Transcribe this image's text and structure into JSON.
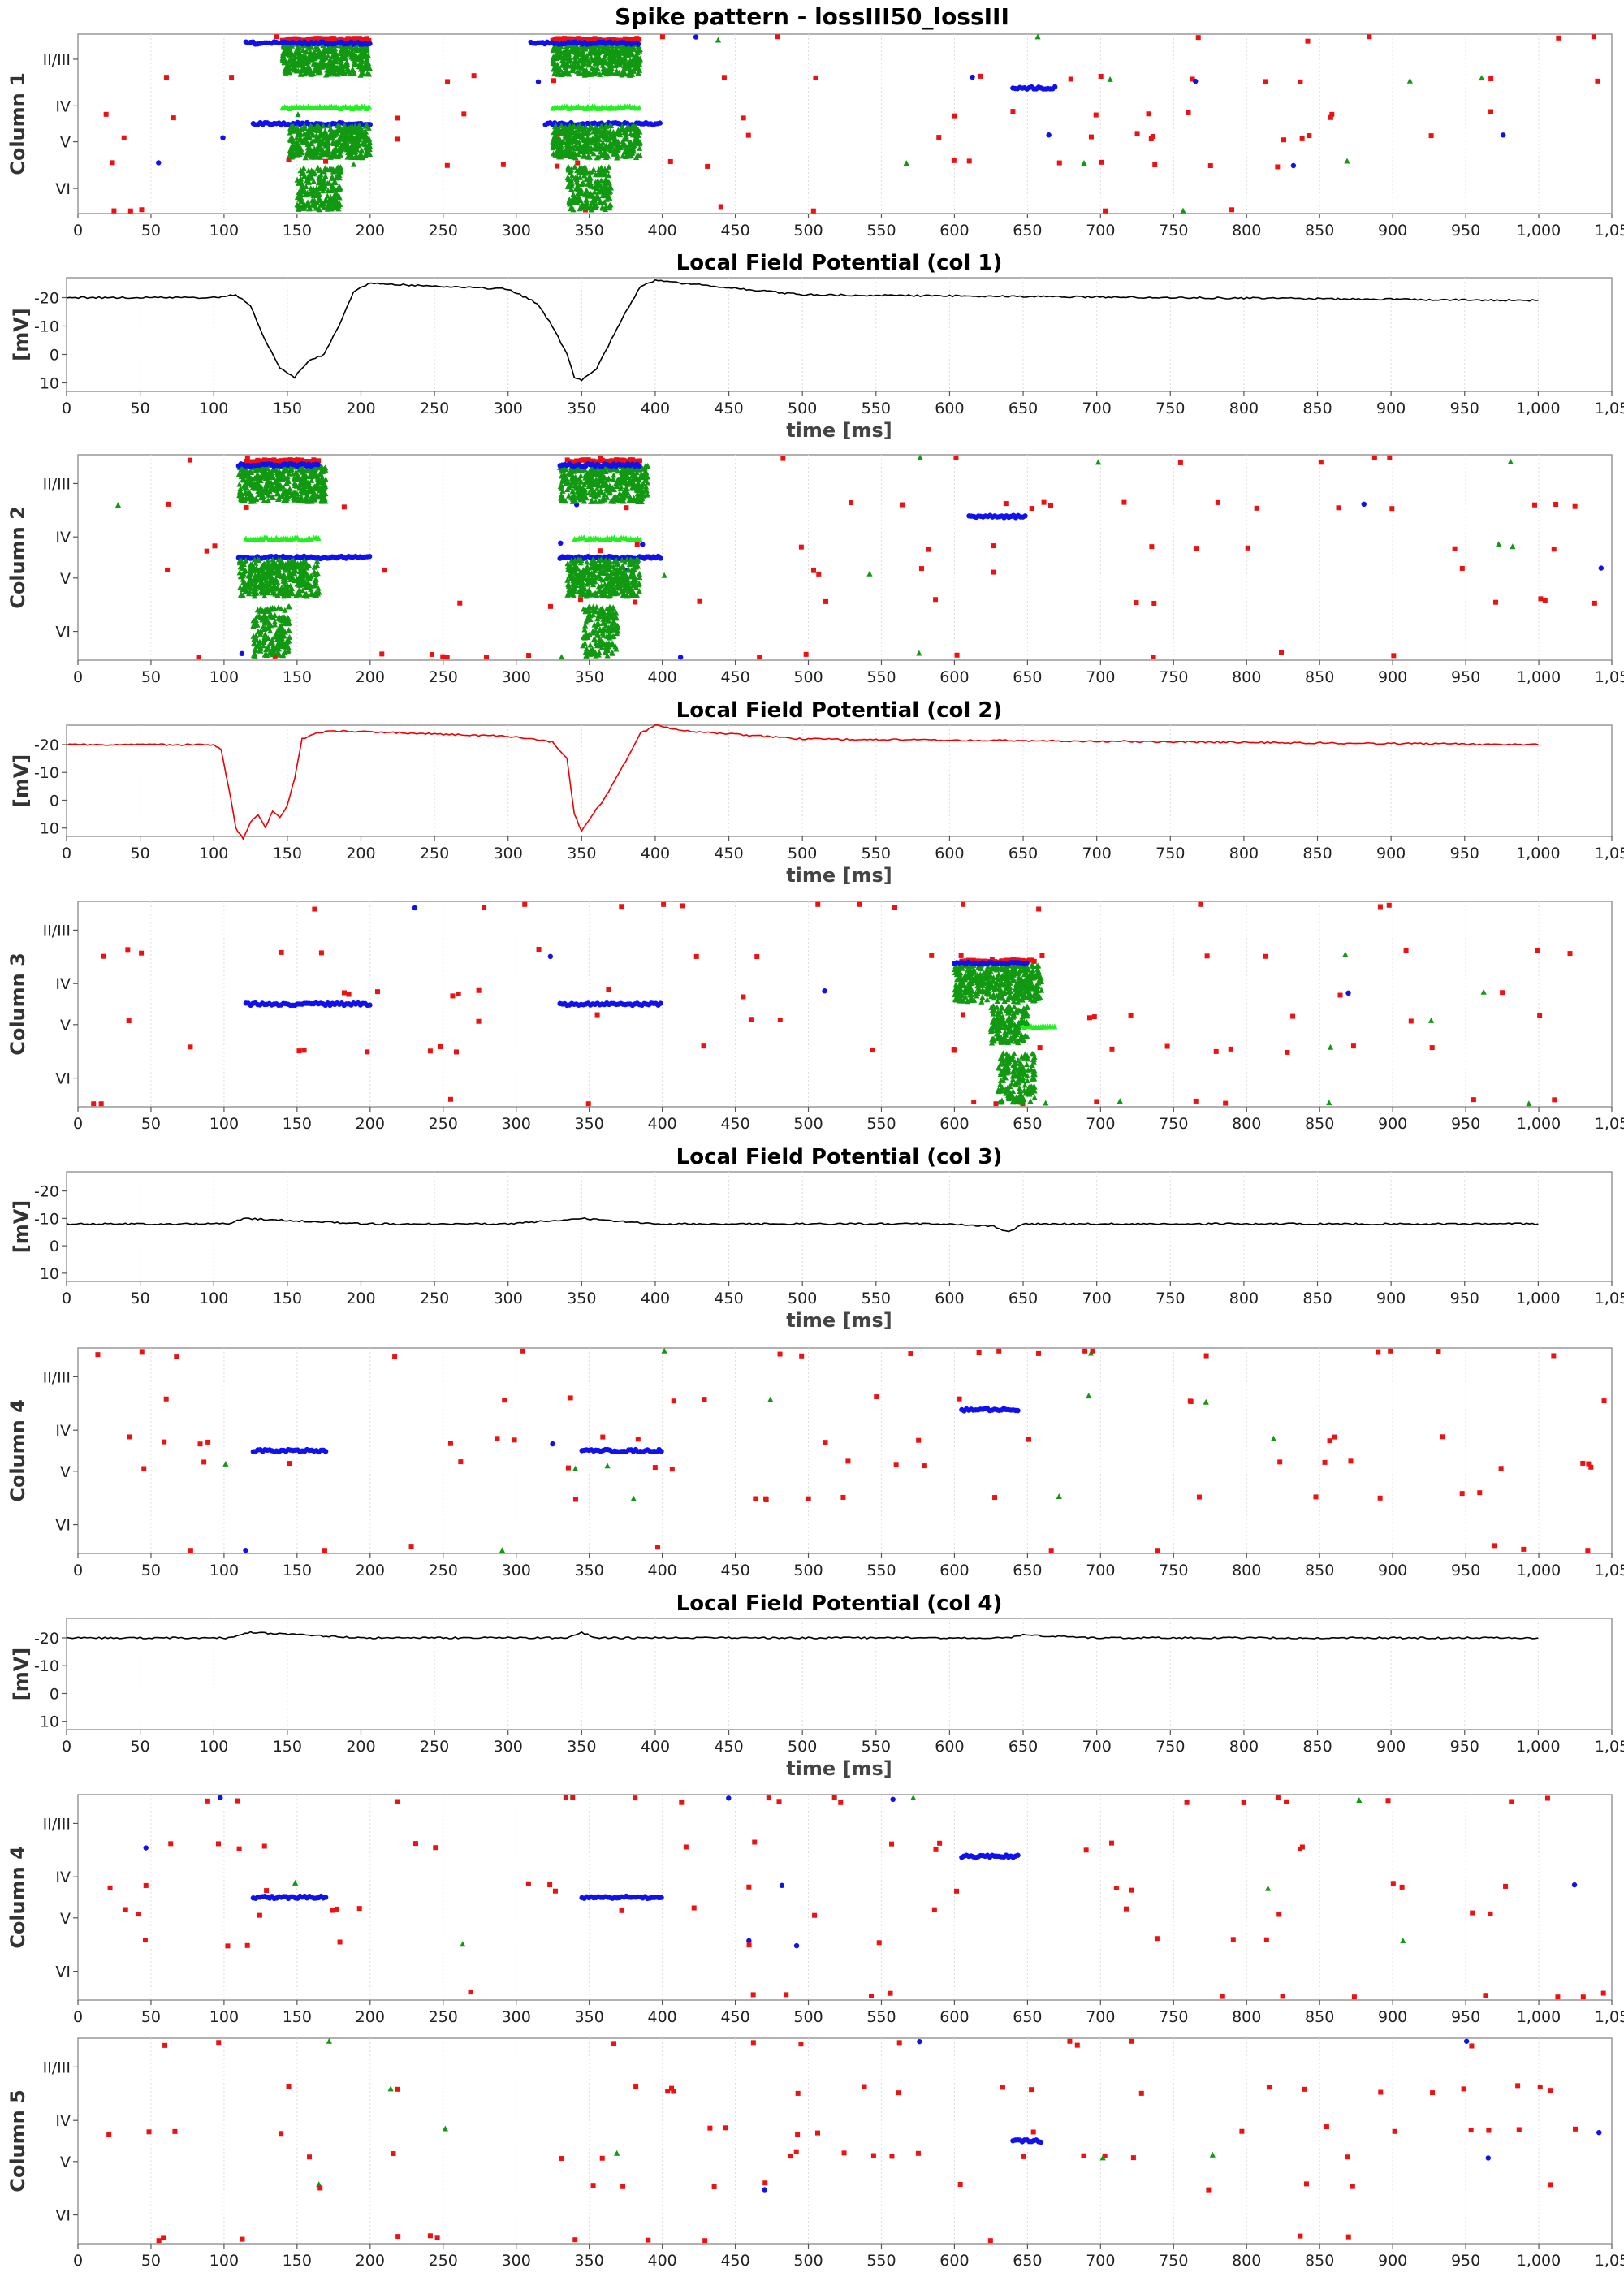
{
  "title": "Spike pattern - lossIII50_lossIII",
  "colors": {
    "red": "#ee1111",
    "blue": "#1111ee",
    "green": "#119911",
    "lime": "#22ee22",
    "lfp_black": "#000000",
    "lfp_red": "#ee0000",
    "frame": "#999999",
    "grid": "#dddddd"
  },
  "chart_data": [
    {
      "type": "scatter",
      "ylabel": "Column 1",
      "x_ticks": [
        0,
        50,
        100,
        150,
        200,
        250,
        300,
        350,
        400,
        450,
        500,
        550,
        600,
        650,
        700,
        750,
        800,
        850,
        900,
        950,
        "1,000",
        "1,05"
      ],
      "layer_labels": [
        "II/III",
        "IV",
        "V",
        "VI"
      ],
      "xlim": [
        0,
        1050
      ],
      "grid": true,
      "bursts": [
        {
          "layer": "II/III",
          "kind": "dense",
          "x": [
            140,
            200
          ],
          "color": "green"
        },
        {
          "layer": "II/III",
          "kind": "band",
          "x": [
            140,
            200
          ],
          "color": "red"
        },
        {
          "layer": "II/III",
          "kind": "band",
          "x": [
            115,
            200
          ],
          "color": "blue"
        },
        {
          "layer": "IV",
          "kind": "band",
          "x": [
            140,
            200
          ],
          "color": "lime"
        },
        {
          "layer": "V",
          "kind": "band",
          "x": [
            120,
            200
          ],
          "color": "blue"
        },
        {
          "layer": "V",
          "kind": "dense",
          "x": [
            145,
            200
          ],
          "color": "green"
        },
        {
          "layer": "VI",
          "kind": "dense",
          "x": [
            150,
            180
          ],
          "color": "green"
        },
        {
          "layer": "II/III",
          "kind": "dense",
          "x": [
            325,
            385
          ],
          "color": "green"
        },
        {
          "layer": "II/III",
          "kind": "band",
          "x": [
            325,
            385
          ],
          "color": "red"
        },
        {
          "layer": "II/III",
          "kind": "band",
          "x": [
            310,
            385
          ],
          "color": "blue"
        },
        {
          "layer": "IV",
          "kind": "band",
          "x": [
            325,
            385
          ],
          "color": "lime"
        },
        {
          "layer": "V",
          "kind": "band",
          "x": [
            320,
            400
          ],
          "color": "blue"
        },
        {
          "layer": "V",
          "kind": "dense",
          "x": [
            325,
            385
          ],
          "color": "green"
        },
        {
          "layer": "VI",
          "kind": "dense",
          "x": [
            335,
            365
          ],
          "color": "green"
        },
        {
          "layer": "IV",
          "kind": "band",
          "x": [
            640,
            670
          ],
          "color": "blue"
        }
      ]
    },
    {
      "type": "line",
      "title": "Local Field Potential (col 1)",
      "xlabel": "time [ms]",
      "ylabel": "[mV]",
      "y_ticks": [
        -20,
        -10,
        0,
        10
      ],
      "ylim": [
        -27,
        13
      ],
      "x_ticks": [
        0,
        50,
        100,
        150,
        200,
        250,
        300,
        350,
        400,
        450,
        500,
        550,
        600,
        650,
        700,
        750,
        800,
        850,
        900,
        950,
        "1,000",
        "1,05"
      ],
      "xlim": [
        0,
        1050
      ],
      "color": "lfp_black",
      "grid": true,
      "x": [
        0,
        100,
        115,
        125,
        135,
        145,
        155,
        165,
        175,
        185,
        195,
        205,
        300,
        320,
        330,
        340,
        345,
        350,
        360,
        370,
        380,
        390,
        400,
        500,
        1000
      ],
      "y": [
        -20,
        -20,
        -21,
        -17,
        -5,
        5,
        8,
        2,
        0,
        -10,
        -22,
        -25,
        -23,
        -18,
        -10,
        0,
        8,
        9,
        5,
        -5,
        -15,
        -24,
        -26,
        -21,
        -19
      ]
    },
    {
      "type": "scatter",
      "ylabel": "Column 2",
      "x_ticks": [
        0,
        50,
        100,
        150,
        200,
        250,
        300,
        350,
        400,
        450,
        500,
        550,
        600,
        650,
        700,
        750,
        800,
        850,
        900,
        950,
        "1,000",
        "1,05"
      ],
      "layer_labels": [
        "II/III",
        "IV",
        "V",
        "VI"
      ],
      "xlim": [
        0,
        1050
      ],
      "grid": true,
      "bursts": [
        {
          "layer": "II/III",
          "kind": "dense",
          "x": [
            110,
            170
          ],
          "color": "green"
        },
        {
          "layer": "II/III",
          "kind": "band",
          "x": [
            115,
            165
          ],
          "color": "red"
        },
        {
          "layer": "II/III",
          "kind": "band",
          "x": [
            110,
            165
          ],
          "color": "blue"
        },
        {
          "layer": "IV",
          "kind": "band",
          "x": [
            115,
            165
          ],
          "color": "lime"
        },
        {
          "layer": "V",
          "kind": "band",
          "x": [
            110,
            200
          ],
          "color": "blue"
        },
        {
          "layer": "V",
          "kind": "dense",
          "x": [
            110,
            165
          ],
          "color": "green"
        },
        {
          "layer": "VI",
          "kind": "dense",
          "x": [
            120,
            145
          ],
          "color": "green"
        },
        {
          "layer": "II/III",
          "kind": "dense",
          "x": [
            330,
            390
          ],
          "color": "green"
        },
        {
          "layer": "II/III",
          "kind": "band",
          "x": [
            335,
            385
          ],
          "color": "red"
        },
        {
          "layer": "II/III",
          "kind": "band",
          "x": [
            330,
            385
          ],
          "color": "blue"
        },
        {
          "layer": "IV",
          "kind": "band",
          "x": [
            340,
            385
          ],
          "color": "lime"
        },
        {
          "layer": "V",
          "kind": "band",
          "x": [
            330,
            400
          ],
          "color": "blue"
        },
        {
          "layer": "V",
          "kind": "dense",
          "x": [
            335,
            385
          ],
          "color": "green"
        },
        {
          "layer": "VI",
          "kind": "dense",
          "x": [
            345,
            370
          ],
          "color": "green"
        },
        {
          "layer": "IV",
          "kind": "band",
          "x": [
            610,
            650
          ],
          "color": "blue"
        }
      ]
    },
    {
      "type": "line",
      "title": "Local Field Potential (col 2)",
      "xlabel": "time [ms]",
      "ylabel": "[mV]",
      "y_ticks": [
        -20,
        -10,
        0,
        10
      ],
      "ylim": [
        -27,
        13
      ],
      "x_ticks": [
        0,
        50,
        100,
        150,
        200,
        250,
        300,
        350,
        400,
        450,
        500,
        550,
        600,
        650,
        700,
        750,
        800,
        850,
        900,
        950,
        "1,000",
        "1,05"
      ],
      "xlim": [
        0,
        1050
      ],
      "color": "lfp_red",
      "grid": true,
      "x": [
        0,
        100,
        105,
        110,
        115,
        120,
        125,
        130,
        135,
        140,
        145,
        150,
        155,
        160,
        170,
        180,
        300,
        330,
        340,
        345,
        350,
        355,
        360,
        365,
        370,
        380,
        390,
        400,
        420,
        500,
        1000
      ],
      "y": [
        -20,
        -20,
        -18,
        -5,
        10,
        14,
        8,
        5,
        10,
        4,
        6,
        2,
        -8,
        -22,
        -24,
        -25,
        -23,
        -21,
        -15,
        5,
        11,
        7,
        3,
        0,
        -5,
        -14,
        -24,
        -27,
        -25,
        -22,
        -20
      ]
    },
    {
      "type": "scatter",
      "ylabel": "Column 3",
      "x_ticks": [
        0,
        50,
        100,
        150,
        200,
        250,
        300,
        350,
        400,
        450,
        500,
        550,
        600,
        650,
        700,
        750,
        800,
        850,
        900,
        950,
        "1,000",
        "1,05"
      ],
      "layer_labels": [
        "II/III",
        "IV",
        "V",
        "VI"
      ],
      "xlim": [
        0,
        1050
      ],
      "grid": true,
      "bursts": [
        {
          "layer": "V",
          "kind": "band",
          "x": [
            115,
            200
          ],
          "color": "blue"
        },
        {
          "layer": "V",
          "kind": "band",
          "x": [
            330,
            400
          ],
          "color": "blue"
        },
        {
          "layer": "IV",
          "kind": "dense",
          "x": [
            600,
            660
          ],
          "color": "green"
        },
        {
          "layer": "IV",
          "kind": "band",
          "x": [
            605,
            655
          ],
          "color": "red"
        },
        {
          "layer": "IV",
          "kind": "band",
          "x": [
            600,
            650
          ],
          "color": "blue"
        },
        {
          "layer": "V",
          "kind": "band",
          "x": [
            635,
            670
          ],
          "color": "lime"
        },
        {
          "layer": "V",
          "kind": "dense",
          "x": [
            625,
            650
          ],
          "color": "green"
        },
        {
          "layer": "VI",
          "kind": "dense",
          "x": [
            630,
            655
          ],
          "color": "green"
        }
      ]
    },
    {
      "type": "line",
      "title": "Local Field Potential (col 3)",
      "xlabel": "time [ms]",
      "ylabel": "[mV]",
      "y_ticks": [
        -20,
        -10,
        0,
        10
      ],
      "ylim": [
        -27,
        13
      ],
      "x_ticks": [
        0,
        50,
        100,
        150,
        200,
        250,
        300,
        350,
        400,
        450,
        500,
        550,
        600,
        650,
        700,
        750,
        800,
        850,
        900,
        950,
        "1,000",
        "1,05"
      ],
      "xlim": [
        0,
        1050
      ],
      "color": "lfp_black",
      "grid": true,
      "x": [
        0,
        110,
        120,
        200,
        300,
        350,
        400,
        500,
        600,
        630,
        640,
        650,
        700,
        1000
      ],
      "y": [
        -8,
        -8,
        -10,
        -8,
        -8,
        -10,
        -8,
        -8,
        -8,
        -7,
        -5,
        -8,
        -8,
        -8
      ]
    },
    {
      "type": "scatter",
      "ylabel": "Column 4",
      "x_ticks": [
        0,
        50,
        100,
        150,
        200,
        250,
        300,
        350,
        400,
        450,
        500,
        550,
        600,
        650,
        700,
        750,
        800,
        850,
        900,
        950,
        "1,000",
        "1,05"
      ],
      "layer_labels": [
        "II/III",
        "IV",
        "V",
        "VI"
      ],
      "xlim": [
        0,
        1050
      ],
      "grid": true,
      "bursts": [
        {
          "layer": "V",
          "kind": "band",
          "x": [
            120,
            170
          ],
          "color": "blue"
        },
        {
          "layer": "V",
          "kind": "band",
          "x": [
            345,
            400
          ],
          "color": "blue"
        },
        {
          "layer": "IV",
          "kind": "band",
          "x": [
            605,
            645
          ],
          "color": "blue"
        }
      ]
    },
    {
      "type": "line",
      "title": "Local Field Potential (col 4)",
      "xlabel": "time [ms]",
      "ylabel": "[mV]",
      "y_ticks": [
        -20,
        -10,
        0,
        10
      ],
      "ylim": [
        -27,
        13
      ],
      "x_ticks": [
        0,
        50,
        100,
        150,
        200,
        250,
        300,
        350,
        400,
        450,
        500,
        550,
        600,
        650,
        700,
        750,
        800,
        850,
        900,
        950,
        "1,000",
        "1,05"
      ],
      "xlim": [
        0,
        1050
      ],
      "color": "lfp_black",
      "grid": true,
      "x": [
        0,
        110,
        125,
        200,
        340,
        350,
        360,
        400,
        640,
        650,
        700,
        1000
      ],
      "y": [
        -20,
        -20,
        -22,
        -20,
        -20,
        -22,
        -20,
        -20,
        -20,
        -21,
        -20,
        -20
      ]
    },
    {
      "type": "scatter",
      "ylabel": "Column 4",
      "x_ticks": [
        0,
        50,
        100,
        150,
        200,
        250,
        300,
        350,
        400,
        450,
        500,
        550,
        600,
        650,
        700,
        750,
        800,
        850,
        900,
        950,
        "1,000",
        "1,05"
      ],
      "layer_labels": [
        "II/III",
        "IV",
        "V",
        "VI"
      ],
      "xlim": [
        0,
        1050
      ],
      "grid": true,
      "bursts": [
        {
          "layer": "V",
          "kind": "band",
          "x": [
            120,
            170
          ],
          "color": "blue"
        },
        {
          "layer": "V",
          "kind": "band",
          "x": [
            345,
            400
          ],
          "color": "blue"
        },
        {
          "layer": "IV",
          "kind": "band",
          "x": [
            605,
            645
          ],
          "color": "blue"
        }
      ]
    },
    {
      "type": "scatter",
      "ylabel": "Column 5",
      "x_ticks": [
        0,
        50,
        100,
        150,
        200,
        250,
        300,
        350,
        400,
        450,
        500,
        550,
        600,
        650,
        700,
        750,
        800,
        850,
        900,
        950,
        "1,000",
        "1,05"
      ],
      "layer_labels": [
        "II/III",
        "IV",
        "V",
        "VI"
      ],
      "xlim": [
        0,
        1050
      ],
      "grid": true,
      "bursts": [
        {
          "layer": "V",
          "kind": "band",
          "x": [
            640,
            660
          ],
          "color": "blue"
        }
      ]
    }
  ]
}
